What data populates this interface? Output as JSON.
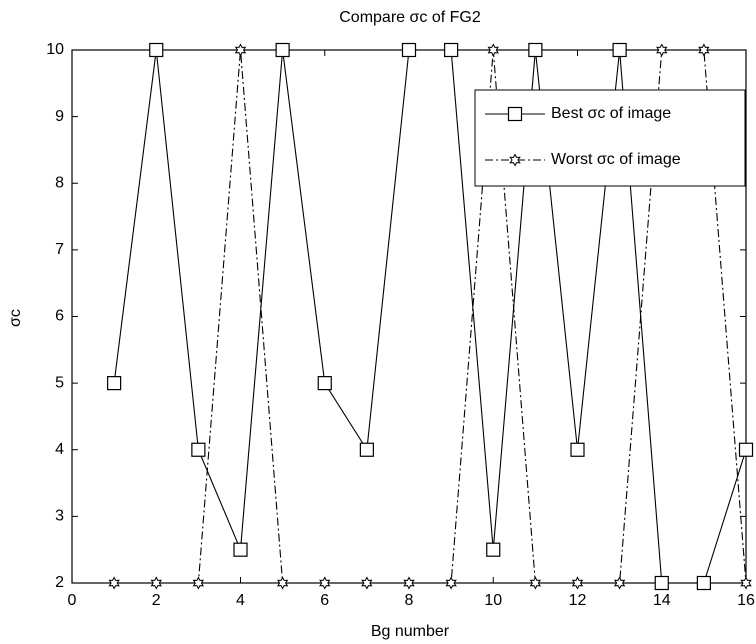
{
  "chart_data": {
    "type": "line",
    "title": "Compare σc of FG2",
    "xlabel": "Bg number",
    "ylabel": "σc",
    "x": [
      1,
      2,
      3,
      4,
      5,
      6,
      7,
      8,
      9,
      10,
      11,
      12,
      13,
      14,
      15,
      16
    ],
    "series": [
      {
        "name": "Best σc of image",
        "color": "#000000",
        "marker": "square",
        "dash": "solid",
        "values": [
          5,
          10,
          4,
          2.5,
          10,
          5,
          4,
          10,
          10,
          2.5,
          10,
          4,
          10,
          2,
          2,
          4
        ]
      },
      {
        "name": "Worst σc of image",
        "color": "#000000",
        "marker": "star",
        "dash": "dashdot",
        "values": [
          2,
          2,
          2,
          10,
          2,
          2,
          2,
          2,
          2,
          10,
          2,
          2,
          2,
          10,
          10,
          2
        ]
      }
    ],
    "xlim": [
      0,
      16
    ],
    "xticks": [
      0,
      2,
      4,
      6,
      8,
      10,
      12,
      14,
      16
    ],
    "ylim": [
      2,
      10
    ],
    "yticks": [
      2,
      3,
      4,
      5,
      6,
      7,
      8,
      9,
      10
    ],
    "legend": "upper right",
    "grid": false
  }
}
